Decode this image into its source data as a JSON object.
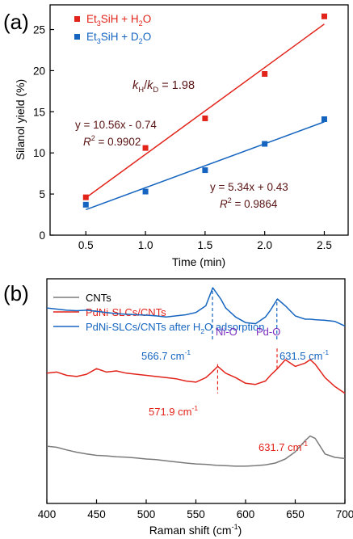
{
  "chart_data": [
    {
      "type": "scatter",
      "panel_label": "(a)",
      "xlabel": "Time (min)",
      "ylabel": "Silanol yield (%)",
      "xlim": [
        0.2,
        2.7
      ],
      "ylim": [
        0,
        28
      ],
      "xticks": [
        "0.5",
        "1.0",
        "1.5",
        "2.0",
        "2.5"
      ],
      "yticks": [
        "0",
        "5",
        "10",
        "15",
        "20",
        "25"
      ],
      "legend_position": "top-left",
      "grid": false,
      "series": [
        {
          "name_parts": [
            "Et",
            "3",
            "SiH + H",
            "2",
            "O"
          ],
          "color": "#e2231a",
          "x": [
            0.5,
            1.0,
            1.5,
            2.0,
            2.5
          ],
          "y": [
            4.6,
            10.6,
            14.2,
            19.6,
            26.6
          ],
          "fit": {
            "slope": 10.56,
            "intercept": -0.74
          }
        },
        {
          "name_parts": [
            "Et",
            "3",
            "SiH + D",
            "2",
            "O"
          ],
          "color": "#1565c0",
          "x": [
            0.5,
            1.0,
            1.5,
            2.0,
            2.5
          ],
          "y": [
            3.7,
            5.3,
            7.9,
            11.1,
            14.1
          ],
          "fit": {
            "slope": 5.34,
            "intercept": 0.43
          }
        }
      ],
      "annotations": {
        "kh_k": "k",
        "kh_h": "H",
        "kh_slash": "/",
        "kh_d": "D",
        "kh_val": " = 1.98",
        "eq1": "y = 10.56x - 0.74",
        "r1_r": "R",
        "r1_sup": "2",
        "r1_val": " = 0.9902",
        "eq2": "y = 5.34x + 0.43",
        "r2_r": "R",
        "r2_sup": "2",
        "r2_val": " = 0.9864"
      }
    },
    {
      "type": "line",
      "panel_label": "(b)",
      "xlabel_main": "Raman shift (cm",
      "xlabel_sup": "-1",
      "xlabel_end": ")",
      "xlim": [
        400,
        700
      ],
      "xticks": [
        400,
        450,
        500,
        550,
        600,
        650,
        700
      ],
      "legend_position": "top-left",
      "series": [
        {
          "name": "CNTs",
          "color": "#7a7a7a",
          "x": [
            400,
            410,
            420,
            430,
            440,
            450,
            460,
            470,
            480,
            490,
            500,
            510,
            520,
            530,
            540,
            550,
            560,
            570,
            580,
            590,
            600,
            610,
            620,
            630,
            640,
            650,
            655,
            660,
            665,
            670,
            675,
            680,
            690,
            700
          ],
          "y": [
            0.255,
            0.25,
            0.238,
            0.228,
            0.22,
            0.214,
            0.212,
            0.208,
            0.206,
            0.202,
            0.198,
            0.195,
            0.19,
            0.185,
            0.18,
            0.176,
            0.174,
            0.17,
            0.168,
            0.166,
            0.166,
            0.168,
            0.172,
            0.18,
            0.198,
            0.23,
            0.255,
            0.28,
            0.3,
            0.29,
            0.255,
            0.22,
            0.205,
            0.2
          ]
        },
        {
          "name": "PdNi-SLCs/CNTs",
          "color": "#e2231a",
          "x": [
            400,
            410,
            420,
            430,
            440,
            450,
            460,
            470,
            480,
            490,
            500,
            510,
            520,
            530,
            540,
            550,
            560,
            565,
            572,
            580,
            590,
            600,
            610,
            620,
            625,
            632,
            640,
            650,
            660,
            665,
            670,
            680,
            690,
            700
          ],
          "y": [
            0.58,
            0.585,
            0.57,
            0.565,
            0.575,
            0.6,
            0.585,
            0.59,
            0.58,
            0.575,
            0.57,
            0.565,
            0.56,
            0.555,
            0.545,
            0.54,
            0.56,
            0.58,
            0.61,
            0.58,
            0.56,
            0.535,
            0.53,
            0.545,
            0.57,
            0.6,
            0.64,
            0.61,
            0.625,
            0.64,
            0.62,
            0.56,
            0.52,
            0.49
          ]
        },
        {
          "name_parts": [
            "PdNi-SLCs/CNTs after H",
            "2",
            "O adsorption"
          ],
          "color": "#1565c0",
          "x": [
            400,
            410,
            420,
            430,
            440,
            450,
            460,
            470,
            480,
            490,
            500,
            510,
            520,
            530,
            540,
            550,
            560,
            567,
            575,
            580,
            590,
            600,
            610,
            620,
            625,
            632,
            640,
            650,
            660,
            665,
            670,
            680,
            690,
            700
          ],
          "y": [
            0.87,
            0.865,
            0.86,
            0.858,
            0.86,
            0.855,
            0.85,
            0.845,
            0.842,
            0.84,
            0.838,
            0.835,
            0.83,
            0.835,
            0.84,
            0.85,
            0.88,
            0.96,
            0.91,
            0.87,
            0.83,
            0.805,
            0.8,
            0.83,
            0.86,
            0.91,
            0.88,
            0.835,
            0.82,
            0.82,
            0.818,
            0.815,
            0.81,
            0.79
          ]
        }
      ],
      "annotations": {
        "blue_peak1_val": "566.7 cm",
        "blue_peak1_sup": "-1",
        "blue_peak2_val": "631.5 cm",
        "blue_peak2_sup": "-1",
        "red_peak1_val": "571.9 cm",
        "red_peak1_sup": "-1",
        "red_peak2_val": "631.7 cm",
        "red_peak2_sup": "-1",
        "nio_label": "Ni-O",
        "pdo_label": "Pd-O",
        "nio_color": "#7b2fbf",
        "pdo_color": "#7b2fbf"
      }
    }
  ]
}
